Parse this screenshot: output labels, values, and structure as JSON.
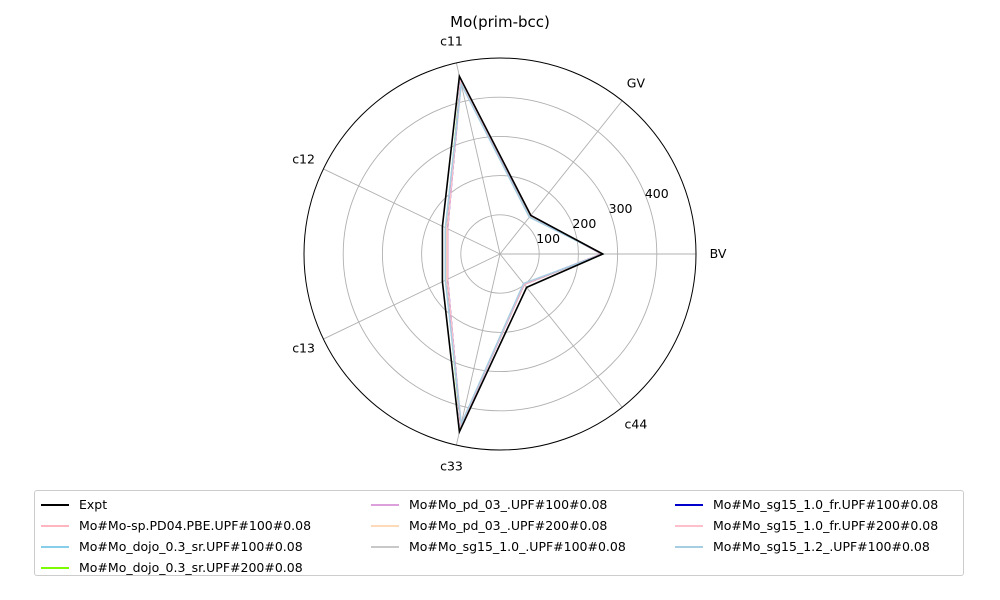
{
  "chart_data": {
    "type": "radar",
    "title": "Mo(prim-bcc)",
    "axes": [
      "BV",
      "GV",
      "c11",
      "c12",
      "c13",
      "c33",
      "c44"
    ],
    "rticks": [
      100,
      200,
      300,
      400
    ],
    "rlim": [
      0,
      500
    ],
    "grid": true,
    "legend_position": "bottom",
    "series": [
      {
        "name": "Expt",
        "color": "#000000",
        "values": [
          262,
          126,
          465,
          163,
          163,
          465,
          109
        ]
      },
      {
        "name": "Mo#Mo-sp.PD04.PBE.UPF#100#0.08",
        "color": "#ffb6c1",
        "values": [
          260,
          124,
          445,
          150,
          150,
          445,
          100
        ]
      },
      {
        "name": "Mo#Mo_dojo_0.3_sr.UPF#100#0.08",
        "color": "#87ceeb",
        "values": [
          262,
          122,
          450,
          153,
          153,
          450,
          98
        ]
      },
      {
        "name": "Mo#Mo_dojo_0.3_sr.UPF#200#0.08",
        "color": "#7cfc00",
        "values": [
          262,
          122,
          450,
          153,
          153,
          450,
          98
        ]
      },
      {
        "name": "Mo#Mo_pd_03_.UPF#100#0.08",
        "color": "#dda0dd",
        "values": [
          261,
          123,
          448,
          152,
          152,
          448,
          99
        ]
      },
      {
        "name": "Mo#Mo_pd_03_.UPF#200#0.08",
        "color": "#ffdab9",
        "values": [
          261,
          123,
          448,
          152,
          152,
          448,
          99
        ]
      },
      {
        "name": "Mo#Mo_sg15_1.0_.UPF#100#0.08",
        "color": "#c8c8c8",
        "values": [
          263,
          121,
          446,
          154,
          154,
          446,
          98
        ]
      },
      {
        "name": "Mo#Mo_sg15_1.0_fr.UPF#100#0.08",
        "color": "#0000cd",
        "values": [
          259,
          126,
          452,
          148,
          148,
          452,
          98
        ]
      },
      {
        "name": "Mo#Mo_sg15_1.0_fr.UPF#200#0.08",
        "color": "#ffc0cb",
        "values": [
          259,
          126,
          452,
          148,
          148,
          452,
          98
        ]
      },
      {
        "name": "Mo#Mo_sg15_1.2_.UPF#100#0.08",
        "color": "#a6cee3",
        "values": [
          263,
          120,
          444,
          155,
          155,
          444,
          96
        ]
      }
    ]
  }
}
